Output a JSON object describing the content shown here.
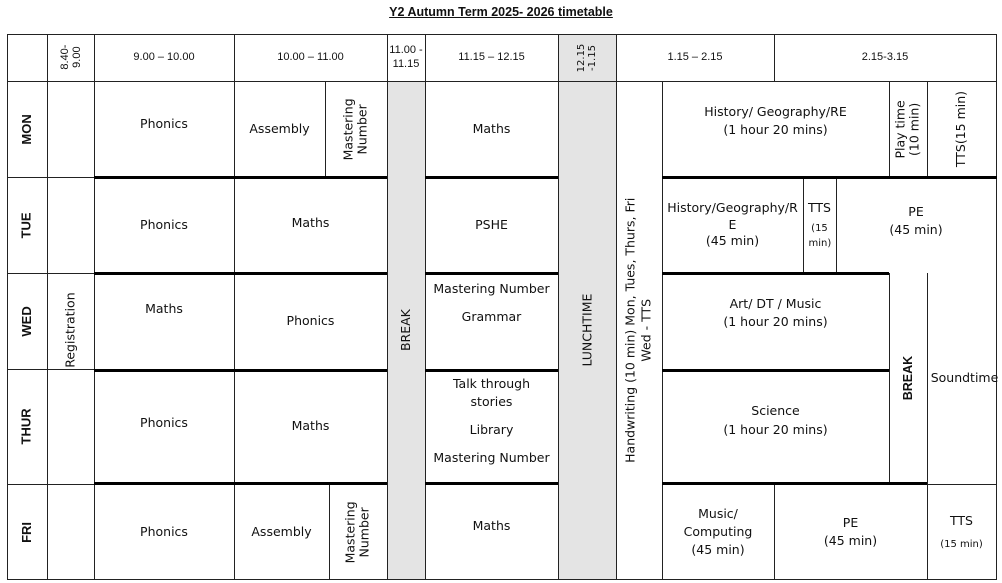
{
  "title": "Y2 Autumn Term 2025- 2026 timetable",
  "header": {
    "t0840": "8.40-9.00",
    "t0900": "9.00 – 10.00",
    "t1000": "10.00 – 11.00",
    "t1100": "11.00 - 11.15",
    "t1115": "11.15 – 12.15",
    "t1215": "12.15 -1.15",
    "t0115": "1.15 – 2.15",
    "t0215": "2.15-3.15"
  },
  "days": {
    "mon": "MON",
    "tue": "TUE",
    "wed": "WED",
    "thur": "THUR",
    "fri": "FRI"
  },
  "spans": {
    "registration": "Registration",
    "break_am": "BREAK",
    "lunchtime": "LUNCHTIME",
    "handwriting": "Handwriting  (10 min) Mon, Tues, Thurs, Fri",
    "handwriting2": "Wed - TTS",
    "break_pm": "BREAK"
  },
  "mon": {
    "p1": "Phonics",
    "p2a": "Assembly",
    "p2b": "Mastering Number",
    "p3": "Maths",
    "pm_a1": "History/ Geography/RE",
    "pm_a2": "(1 hour 20 mins)",
    "play": "Play time (10 min)",
    "tts": "TTS(15 min)"
  },
  "tue": {
    "p1": "Phonics",
    "p2": "Maths",
    "p3": "PSHE",
    "hist1": "History/Geography/R",
    "hist2": "E",
    "hist3": "(45 min)",
    "tts": "TTS",
    "tts_dur": "(15 min)",
    "pe": "PE",
    "pe_dur": "(45 min)"
  },
  "wed": {
    "p1": "Maths",
    "p2": "Phonics",
    "p3a": "Mastering Number",
    "p3b": "Grammar",
    "art1": "Art/ DT / Music",
    "art2": "(1 hour 20 mins)",
    "sound": "Soundtime"
  },
  "thur": {
    "p1": "Phonics",
    "p2": "Maths",
    "p3a": "Talk through stories",
    "p3b": "Library",
    "p3c": "Mastering Number",
    "sci1": "Science",
    "sci2": "(1 hour 20 mins)"
  },
  "fri": {
    "p1": "Phonics",
    "p2a": "Assembly",
    "p2b": "Mastering Number",
    "p3": "Maths",
    "music1": "Music/ Computing",
    "music2": "(45 min)",
    "pe": "PE",
    "pe_dur": "(45 min)",
    "tts": "TTS",
    "tts_dur": "(15 min)"
  }
}
